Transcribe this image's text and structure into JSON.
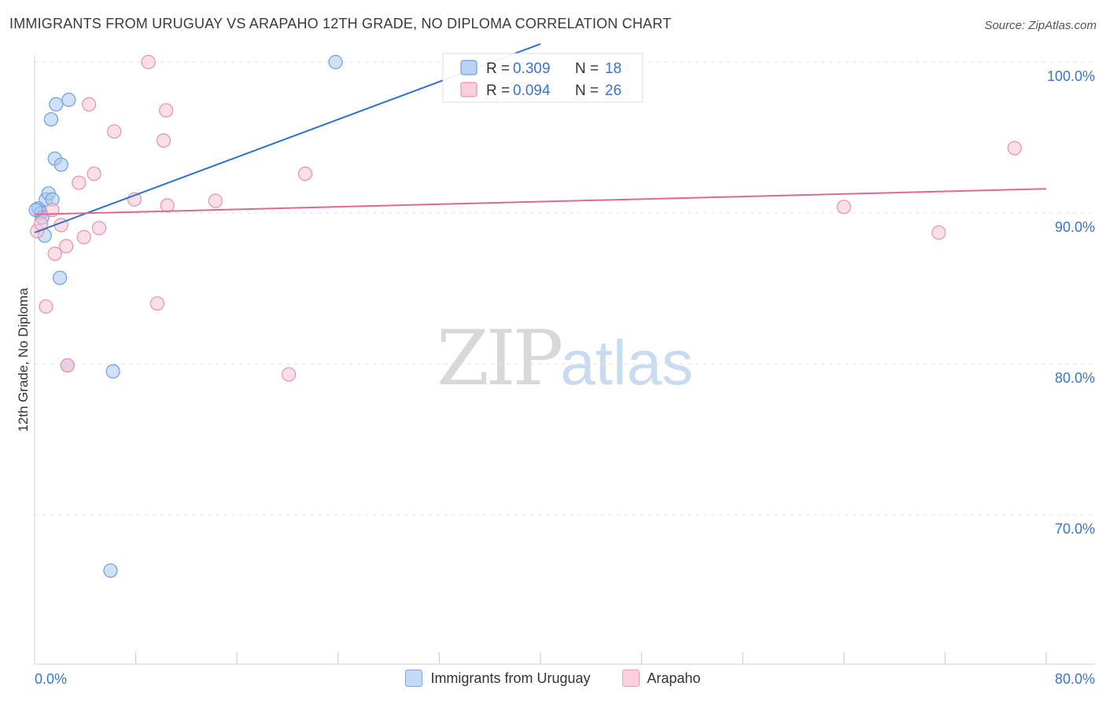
{
  "title": "IMMIGRANTS FROM URUGUAY VS ARAPAHO 12TH GRADE, NO DIPLOMA CORRELATION CHART",
  "source": "Source: ZipAtlas.com",
  "watermark": {
    "zip": "ZIP",
    "atlas": "atlas"
  },
  "legend": {
    "rows": [
      {
        "r_label": "R = ",
        "r_value": "0.309",
        "n_label": "N = ",
        "n_value": "18"
      },
      {
        "r_label": "R = ",
        "r_value": "0.094",
        "n_label": "N = ",
        "n_value": "26"
      }
    ]
  },
  "colors": {
    "blue_fill": "#aac8f0",
    "blue_stroke": "#6a9fe0",
    "blue_line": "#2f6fd0",
    "pink_fill": "#f8c4d2",
    "pink_stroke": "#e890aa",
    "pink_line": "#e06890",
    "grid": "#e2e2e2",
    "axis_text": "#3b74c9"
  },
  "chart_data": {
    "type": "scatter",
    "title": "IMMIGRANTS FROM URUGUAY VS ARAPAHO 12TH GRADE, NO DIPLOMA CORRELATION CHART",
    "xlabel": "",
    "ylabel": "12th Grade, No Diploma",
    "xlim": [
      0,
      80
    ],
    "ylim": [
      60,
      101
    ],
    "x_tick_labels": [
      "0.0%",
      "80.0%"
    ],
    "y_ticks": [
      70,
      80,
      90,
      100
    ],
    "y_tick_labels": [
      "70.0%",
      "80.0%",
      "90.0%",
      "100.0%"
    ],
    "series": [
      {
        "name": "Immigrants from Uruguay",
        "color": "blue",
        "points": [
          [
            0.3,
            90.3
          ],
          [
            0.5,
            90.0
          ],
          [
            0.6,
            89.7
          ],
          [
            0.8,
            88.5
          ],
          [
            0.9,
            90.9
          ],
          [
            1.1,
            91.3
          ],
          [
            1.3,
            96.2
          ],
          [
            1.4,
            90.9
          ],
          [
            1.6,
            93.6
          ],
          [
            1.7,
            97.2
          ],
          [
            2.1,
            93.2
          ],
          [
            2.0,
            85.7
          ],
          [
            2.7,
            97.5
          ],
          [
            2.6,
            79.9
          ],
          [
            6.2,
            79.5
          ],
          [
            6.0,
            66.3
          ],
          [
            23.8,
            100.0
          ],
          [
            0.1,
            90.2
          ]
        ],
        "trend": {
          "x1": 0,
          "y1": 88.7,
          "x2": 40,
          "y2": 101.2
        }
      },
      {
        "name": "Arapaho",
        "color": "pink",
        "points": [
          [
            0.2,
            88.8
          ],
          [
            0.5,
            89.3
          ],
          [
            0.9,
            83.8
          ],
          [
            1.4,
            90.2
          ],
          [
            1.6,
            87.3
          ],
          [
            2.1,
            89.2
          ],
          [
            2.5,
            87.8
          ],
          [
            2.6,
            79.9
          ],
          [
            3.5,
            92.0
          ],
          [
            3.9,
            88.4
          ],
          [
            4.3,
            97.2
          ],
          [
            4.7,
            92.6
          ],
          [
            5.1,
            89.0
          ],
          [
            6.3,
            95.4
          ],
          [
            7.9,
            90.9
          ],
          [
            9.0,
            100.0
          ],
          [
            9.7,
            84.0
          ],
          [
            10.2,
            94.8
          ],
          [
            10.4,
            96.8
          ],
          [
            10.5,
            90.5
          ],
          [
            14.3,
            90.8
          ],
          [
            20.1,
            79.3
          ],
          [
            21.4,
            92.6
          ],
          [
            64.0,
            90.4
          ],
          [
            71.5,
            88.7
          ],
          [
            77.5,
            94.3
          ]
        ],
        "trend": {
          "x1": 0,
          "y1": 89.9,
          "x2": 80,
          "y2": 91.6
        }
      }
    ]
  },
  "bottom_legend": [
    "Immigrants from Uruguay",
    "Arapaho"
  ]
}
